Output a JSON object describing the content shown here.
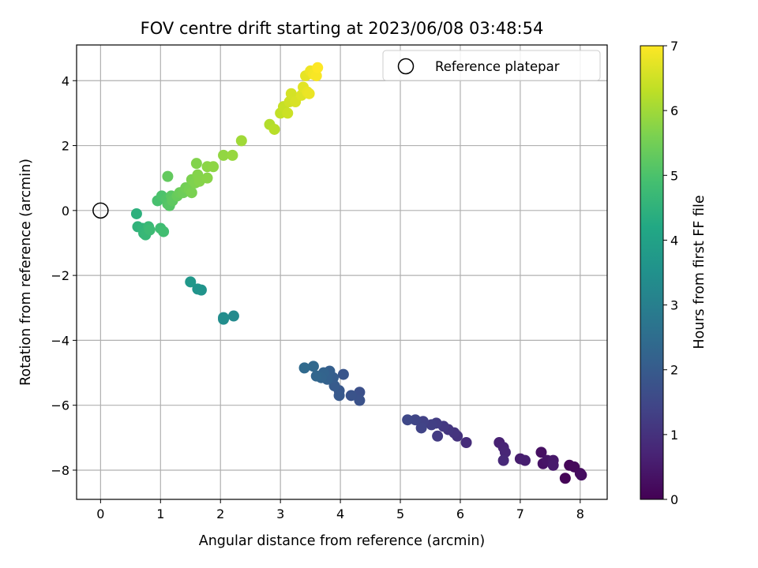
{
  "chart_data": {
    "type": "scatter",
    "title": "FOV centre drift starting at 2023/06/08 03:48:54",
    "xlabel": "Angular distance from reference (arcmin)",
    "ylabel": "Rotation from reference (arcmin)",
    "xlim": [
      -0.4,
      8.45
    ],
    "ylim": [
      -8.9,
      5.1
    ],
    "xticks": [
      0,
      1,
      2,
      3,
      4,
      5,
      6,
      7,
      8
    ],
    "yticks": [
      -8,
      -6,
      -4,
      -2,
      0,
      2,
      4
    ],
    "grid": true,
    "legend": {
      "position": "top-right",
      "entries": [
        "Reference platepar"
      ]
    },
    "reference": {
      "x": 0,
      "y": 0,
      "label": "Reference platepar"
    },
    "colorbar": {
      "label": "Hours from first FF file",
      "range": [
        0,
        7
      ],
      "ticks": [
        0,
        1,
        2,
        3,
        4,
        5,
        6,
        7
      ],
      "colormap": "viridis"
    },
    "points": [
      {
        "x": 7.75,
        "y": -8.25,
        "h": 0.05
      },
      {
        "x": 7.82,
        "y": -7.85,
        "h": 0.1
      },
      {
        "x": 7.9,
        "y": -7.9,
        "h": 0.15
      },
      {
        "x": 8.0,
        "y": -8.1,
        "h": 0.2
      },
      {
        "x": 8.02,
        "y": -8.15,
        "h": 0.25
      },
      {
        "x": 7.35,
        "y": -7.45,
        "h": 0.3
      },
      {
        "x": 7.38,
        "y": -7.8,
        "h": 0.35
      },
      {
        "x": 7.45,
        "y": -7.7,
        "h": 0.4
      },
      {
        "x": 7.55,
        "y": -7.7,
        "h": 0.45
      },
      {
        "x": 7.55,
        "y": -7.85,
        "h": 0.5
      },
      {
        "x": 7.0,
        "y": -7.65,
        "h": 0.55
      },
      {
        "x": 7.08,
        "y": -7.7,
        "h": 0.6
      },
      {
        "x": 6.65,
        "y": -7.15,
        "h": 0.65
      },
      {
        "x": 6.72,
        "y": -7.3,
        "h": 0.7
      },
      {
        "x": 6.75,
        "y": -7.45,
        "h": 0.75
      },
      {
        "x": 6.72,
        "y": -7.7,
        "h": 0.8
      },
      {
        "x": 6.1,
        "y": -7.15,
        "h": 0.9
      },
      {
        "x": 5.95,
        "y": -6.95,
        "h": 1.0
      },
      {
        "x": 5.9,
        "y": -6.85,
        "h": 1.05
      },
      {
        "x": 5.8,
        "y": -6.75,
        "h": 1.1
      },
      {
        "x": 5.72,
        "y": -6.65,
        "h": 1.15
      },
      {
        "x": 5.62,
        "y": -6.95,
        "h": 1.2
      },
      {
        "x": 5.6,
        "y": -6.55,
        "h": 1.25
      },
      {
        "x": 5.52,
        "y": -6.6,
        "h": 1.3
      },
      {
        "x": 5.38,
        "y": -6.5,
        "h": 1.35
      },
      {
        "x": 5.35,
        "y": -6.7,
        "h": 1.4
      },
      {
        "x": 5.25,
        "y": -6.45,
        "h": 1.45
      },
      {
        "x": 5.12,
        "y": -6.45,
        "h": 1.5
      },
      {
        "x": 4.32,
        "y": -5.6,
        "h": 1.7
      },
      {
        "x": 4.32,
        "y": -5.85,
        "h": 1.75
      },
      {
        "x": 4.18,
        "y": -5.7,
        "h": 1.8
      },
      {
        "x": 4.05,
        "y": -5.05,
        "h": 1.85
      },
      {
        "x": 3.98,
        "y": -5.55,
        "h": 1.9
      },
      {
        "x": 3.98,
        "y": -5.7,
        "h": 1.95
      },
      {
        "x": 3.9,
        "y": -5.4,
        "h": 2.0
      },
      {
        "x": 3.88,
        "y": -5.15,
        "h": 2.05
      },
      {
        "x": 3.82,
        "y": -4.95,
        "h": 2.1
      },
      {
        "x": 3.78,
        "y": -5.2,
        "h": 2.15
      },
      {
        "x": 3.72,
        "y": -5.0,
        "h": 2.2
      },
      {
        "x": 3.68,
        "y": -5.15,
        "h": 2.25
      },
      {
        "x": 3.6,
        "y": -5.1,
        "h": 2.3
      },
      {
        "x": 3.55,
        "y": -4.8,
        "h": 2.35
      },
      {
        "x": 3.4,
        "y": -4.85,
        "h": 2.4
      },
      {
        "x": 2.22,
        "y": -3.25,
        "h": 3.3
      },
      {
        "x": 2.05,
        "y": -3.3,
        "h": 3.35
      },
      {
        "x": 2.05,
        "y": -3.35,
        "h": 3.4
      },
      {
        "x": 1.68,
        "y": -2.45,
        "h": 3.55
      },
      {
        "x": 1.62,
        "y": -2.42,
        "h": 3.6
      },
      {
        "x": 1.5,
        "y": -2.2,
        "h": 3.7
      },
      {
        "x": 0.6,
        "y": -0.1,
        "h": 4.45
      },
      {
        "x": 0.62,
        "y": -0.5,
        "h": 4.5
      },
      {
        "x": 0.7,
        "y": -0.55,
        "h": 4.55
      },
      {
        "x": 0.72,
        "y": -0.7,
        "h": 4.6
      },
      {
        "x": 0.75,
        "y": -0.75,
        "h": 4.65
      },
      {
        "x": 0.8,
        "y": -0.5,
        "h": 4.7
      },
      {
        "x": 0.82,
        "y": -0.6,
        "h": 4.75
      },
      {
        "x": 1.0,
        "y": -0.55,
        "h": 4.8
      },
      {
        "x": 1.05,
        "y": -0.65,
        "h": 4.85
      },
      {
        "x": 0.95,
        "y": 0.3,
        "h": 4.95
      },
      {
        "x": 1.02,
        "y": 0.45,
        "h": 5.0
      },
      {
        "x": 1.1,
        "y": 0.35,
        "h": 5.05
      },
      {
        "x": 1.12,
        "y": 0.2,
        "h": 5.1
      },
      {
        "x": 1.15,
        "y": 0.15,
        "h": 5.15
      },
      {
        "x": 1.18,
        "y": 0.45,
        "h": 5.2
      },
      {
        "x": 1.2,
        "y": 0.3,
        "h": 5.25
      },
      {
        "x": 1.12,
        "y": 1.05,
        "h": 5.3
      },
      {
        "x": 1.28,
        "y": 0.45,
        "h": 5.35
      },
      {
        "x": 1.32,
        "y": 0.55,
        "h": 5.4
      },
      {
        "x": 1.38,
        "y": 0.55,
        "h": 5.45
      },
      {
        "x": 1.42,
        "y": 0.7,
        "h": 5.5
      },
      {
        "x": 1.48,
        "y": 0.65,
        "h": 5.55
      },
      {
        "x": 1.52,
        "y": 0.55,
        "h": 5.6
      },
      {
        "x": 1.52,
        "y": 0.95,
        "h": 5.62
      },
      {
        "x": 1.58,
        "y": 0.85,
        "h": 5.65
      },
      {
        "x": 1.6,
        "y": 1.45,
        "h": 5.68
      },
      {
        "x": 1.62,
        "y": 1.1,
        "h": 5.7
      },
      {
        "x": 1.65,
        "y": 0.9,
        "h": 5.72
      },
      {
        "x": 1.78,
        "y": 1.0,
        "h": 5.75
      },
      {
        "x": 1.78,
        "y": 1.35,
        "h": 5.78
      },
      {
        "x": 1.88,
        "y": 1.35,
        "h": 5.8
      },
      {
        "x": 2.05,
        "y": 1.7,
        "h": 5.85
      },
      {
        "x": 2.2,
        "y": 1.7,
        "h": 5.9
      },
      {
        "x": 2.35,
        "y": 2.15,
        "h": 6.0
      },
      {
        "x": 2.82,
        "y": 2.65,
        "h": 6.2
      },
      {
        "x": 2.9,
        "y": 2.5,
        "h": 6.25
      },
      {
        "x": 3.0,
        "y": 3.0,
        "h": 6.35
      },
      {
        "x": 3.05,
        "y": 3.2,
        "h": 6.4
      },
      {
        "x": 3.12,
        "y": 3.0,
        "h": 6.45
      },
      {
        "x": 3.15,
        "y": 3.35,
        "h": 6.5
      },
      {
        "x": 3.18,
        "y": 3.6,
        "h": 6.55
      },
      {
        "x": 3.25,
        "y": 3.35,
        "h": 6.6
      },
      {
        "x": 3.35,
        "y": 3.55,
        "h": 6.65
      },
      {
        "x": 3.38,
        "y": 3.8,
        "h": 6.7
      },
      {
        "x": 3.42,
        "y": 4.15,
        "h": 6.75
      },
      {
        "x": 3.45,
        "y": 3.65,
        "h": 6.78
      },
      {
        "x": 3.48,
        "y": 3.6,
        "h": 6.8
      },
      {
        "x": 3.5,
        "y": 4.3,
        "h": 6.85
      },
      {
        "x": 3.55,
        "y": 4.2,
        "h": 6.9
      },
      {
        "x": 3.6,
        "y": 4.15,
        "h": 6.95
      },
      {
        "x": 3.62,
        "y": 4.4,
        "h": 7.0
      }
    ]
  }
}
